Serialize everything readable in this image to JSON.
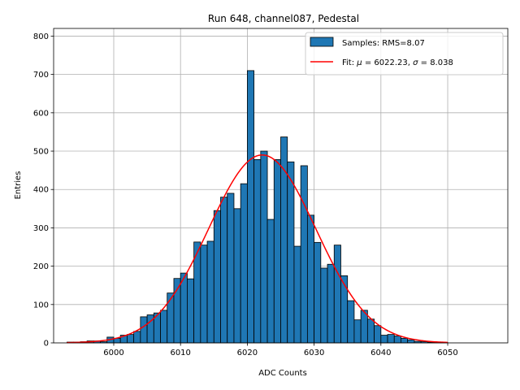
{
  "chart_data": {
    "type": "histogram",
    "title": "Run 648, channel087, Pedestal",
    "xlabel": "ADC Counts",
    "ylabel": "Entries",
    "xlim": [
      5991,
      6059
    ],
    "ylim": [
      0,
      820
    ],
    "xticks": [
      6000,
      6010,
      6020,
      6030,
      6040,
      6050
    ],
    "yticks": [
      0,
      100,
      200,
      300,
      400,
      500,
      600,
      700,
      800
    ],
    "grid": true,
    "legend_position": "top-right",
    "bar_color": "#1f77b4",
    "fit_color": "#ff0000",
    "bin_width": 1,
    "bins": [
      {
        "x": 5993,
        "y": 2
      },
      {
        "x": 5994,
        "y": 2
      },
      {
        "x": 5995,
        "y": 3
      },
      {
        "x": 5996,
        "y": 5
      },
      {
        "x": 5997,
        "y": 5
      },
      {
        "x": 5998,
        "y": 3
      },
      {
        "x": 5999,
        "y": 15
      },
      {
        "x": 6000,
        "y": 12
      },
      {
        "x": 6001,
        "y": 20
      },
      {
        "x": 6002,
        "y": 22
      },
      {
        "x": 6003,
        "y": 30
      },
      {
        "x": 6004,
        "y": 68
      },
      {
        "x": 6005,
        "y": 73
      },
      {
        "x": 6006,
        "y": 78
      },
      {
        "x": 6007,
        "y": 85
      },
      {
        "x": 6008,
        "y": 130
      },
      {
        "x": 6009,
        "y": 168
      },
      {
        "x": 6010,
        "y": 182
      },
      {
        "x": 6011,
        "y": 167
      },
      {
        "x": 6012,
        "y": 263
      },
      {
        "x": 6013,
        "y": 255
      },
      {
        "x": 6014,
        "y": 265
      },
      {
        "x": 6015,
        "y": 345
      },
      {
        "x": 6016,
        "y": 380
      },
      {
        "x": 6017,
        "y": 390
      },
      {
        "x": 6018,
        "y": 350
      },
      {
        "x": 6019,
        "y": 415
      },
      {
        "x": 6020,
        "y": 710
      },
      {
        "x": 6021,
        "y": 478
      },
      {
        "x": 6022,
        "y": 500
      },
      {
        "x": 6023,
        "y": 322
      },
      {
        "x": 6024,
        "y": 478
      },
      {
        "x": 6025,
        "y": 537
      },
      {
        "x": 6026,
        "y": 472
      },
      {
        "x": 6027,
        "y": 252
      },
      {
        "x": 6028,
        "y": 462
      },
      {
        "x": 6029,
        "y": 333
      },
      {
        "x": 6030,
        "y": 262
      },
      {
        "x": 6031,
        "y": 195
      },
      {
        "x": 6032,
        "y": 205
      },
      {
        "x": 6033,
        "y": 255
      },
      {
        "x": 6034,
        "y": 175
      },
      {
        "x": 6035,
        "y": 110
      },
      {
        "x": 6036,
        "y": 60
      },
      {
        "x": 6037,
        "y": 85
      },
      {
        "x": 6038,
        "y": 62
      },
      {
        "x": 6039,
        "y": 45
      },
      {
        "x": 6040,
        "y": 20
      },
      {
        "x": 6041,
        "y": 22
      },
      {
        "x": 6042,
        "y": 18
      },
      {
        "x": 6043,
        "y": 12
      },
      {
        "x": 6044,
        "y": 8
      },
      {
        "x": 6045,
        "y": 4
      },
      {
        "x": 6046,
        "y": 3
      },
      {
        "x": 6047,
        "y": 2
      },
      {
        "x": 6048,
        "y": 2
      },
      {
        "x": 6049,
        "y": 1
      }
    ],
    "fit": {
      "mu": 6022.23,
      "sigma": 8.038,
      "peak": 490,
      "x_range": [
        5993,
        6050
      ]
    },
    "legend": [
      {
        "kind": "patch",
        "label": "Samples: RMS=8.07"
      },
      {
        "kind": "line",
        "label_prefix": "Fit: ",
        "mu_symbol": "μ",
        "mu_text": " = 6022.23, ",
        "sigma_symbol": "σ",
        "sigma_text": " = 8.038"
      }
    ]
  }
}
